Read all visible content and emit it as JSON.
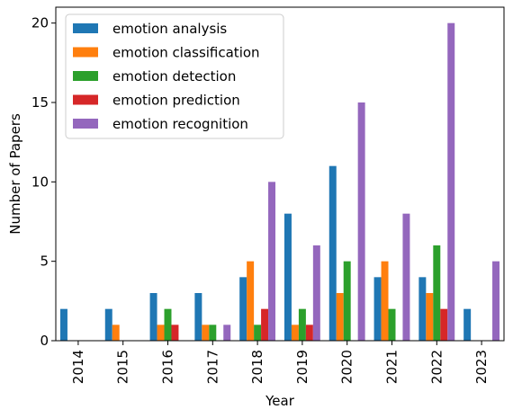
{
  "chart_data": {
    "type": "bar",
    "xlabel": "Year",
    "ylabel": "Number of Papers",
    "categories": [
      "2014",
      "2015",
      "2016",
      "2017",
      "2018",
      "2019",
      "2020",
      "2021",
      "2022",
      "2023"
    ],
    "ylim": [
      0,
      21
    ],
    "yticks": [
      0,
      5,
      10,
      15,
      20
    ],
    "legend_position": "top-left",
    "series": [
      {
        "name": "emotion analysis",
        "color": "#1f77b4",
        "values": [
          2,
          2,
          3,
          3,
          4,
          8,
          11,
          4,
          4,
          2
        ]
      },
      {
        "name": "emotion classification",
        "color": "#ff7f0e",
        "values": [
          0,
          1,
          1,
          1,
          5,
          1,
          3,
          5,
          3,
          0
        ]
      },
      {
        "name": "emotion detection",
        "color": "#2ca02c",
        "values": [
          0,
          0,
          2,
          1,
          1,
          2,
          5,
          2,
          6,
          0
        ]
      },
      {
        "name": "emotion prediction",
        "color": "#d62728",
        "values": [
          0,
          0,
          1,
          0,
          2,
          1,
          0,
          0,
          2,
          0
        ]
      },
      {
        "name": "emotion recognition",
        "color": "#9467bd",
        "values": [
          0,
          0,
          0,
          1,
          10,
          6,
          15,
          8,
          20,
          5
        ]
      }
    ]
  }
}
